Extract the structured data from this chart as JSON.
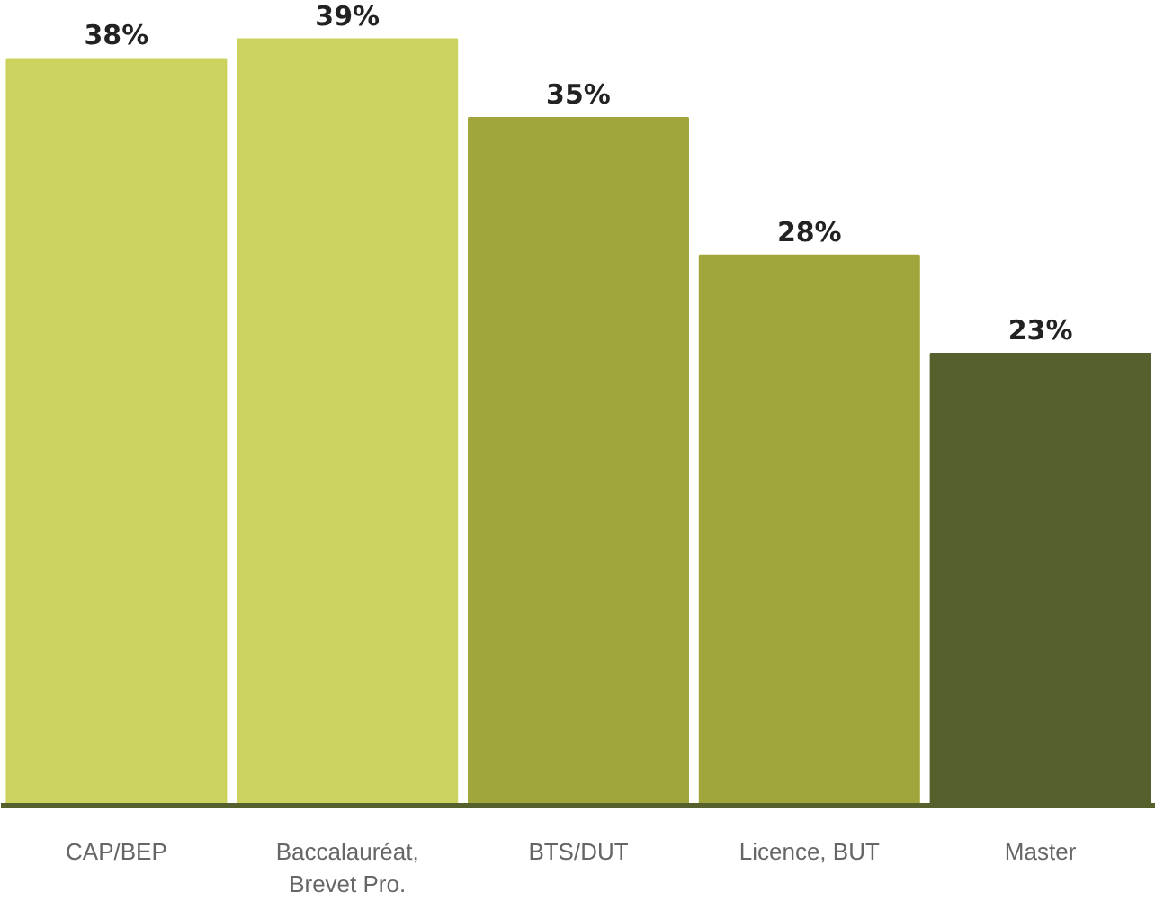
{
  "chart_data": {
    "type": "bar",
    "categories": [
      "CAP/BEP",
      "Baccalauréat,\nBrevet Pro.",
      "BTS/DUT",
      "Licence, BUT",
      "Master"
    ],
    "values": [
      38,
      39,
      35,
      28,
      23
    ],
    "colors": [
      "#cbd35e",
      "#cbd35e",
      "#a0a63c",
      "#a0a63c",
      "#55602c"
    ],
    "value_labels": [
      "38%",
      "39%",
      "35%",
      "28%",
      "23%"
    ],
    "tick_labels": "x"
  }
}
